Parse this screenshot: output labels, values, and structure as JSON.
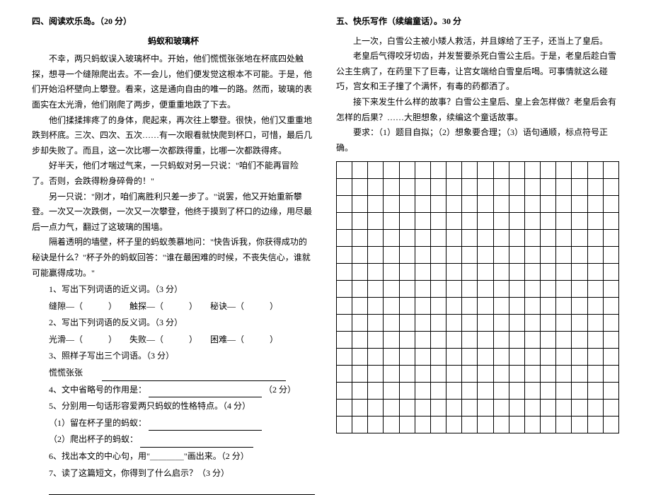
{
  "left": {
    "section_title": "四、阅读欢乐岛。（20 分）",
    "story_title": "蚂蚁和玻璃杯",
    "paragraphs": [
      "不幸，两只蚂蚁误入玻璃杯中。开始，他们慌慌张张地在杯底四处触探，想寻一个缝隙爬出去。不一会儿，他们便发觉这根本不可能。于是，他们开始沿杯壁向上攀登。看来，这是通向自由的唯一的路。然而，玻璃的表面实在太光滑，他们刚爬了两步，便重重地跌了下去。",
      "他们揉揉摔疼了的身体，爬起来，再次往上攀登。很快，他们又重重地跌到杯底。三次、四次、五次……有一次眼看就快爬到杯口，可惜，最后几步却失败了。而且，这一次比哪一次都跌得重，比哪一次都跌得疼。",
      "好半天，他们才喘过气来，一只蚂蚁对另一只说：\"咱们不能再冒险了。否则，会跌得粉身碎骨的！\"",
      "另一只说：\"刚才，咱们离胜利只差一步了。\"说罢，他又开始重新攀登。一次又一次跌倒，一次又一次攀登，他终于摸到了杯口的边缘，用尽最后一点力气，翻过了这玻璃的围墙。",
      "隔着透明的墙壁，杯子里的蚂蚁羡慕地问：\"快告诉我，你获得成功的秘诀是什么？\"杯子外的蚂蚁回答：\"谁在最困难的时候，不丧失信心，谁就可能赢得成功。\""
    ],
    "questions": {
      "q1": "1、写出下列词语的近义词。（3 分）",
      "q1_items": "缝隙—（　　　）　　触探—（　　　）　　秘诀—（　　　）",
      "q2": "2、写出下列词语的反义词。（3 分）",
      "q2_items": "光滑—（　　　）　　失败—（　　　）　　困难—（　　　）",
      "q3": "3、照样子写出三个词语。（3 分）",
      "q3_items": "慌慌张张　　",
      "q4": "4、文中省略号的作用是：",
      "q4_score": "（2 分）",
      "q5": "5、分别用一句话形容爱两只蚂蚁的性格特点。（4 分）",
      "q5_a": "（1）留在杯子里的蚂蚁：",
      "q5_b": "（2）爬出杯子的蚂蚁：",
      "q6": "6、找出本文的中心句，用\"＿＿＿＿\"画出来。（2 分）",
      "q7": "7、读了这篇短文，你得到了什么启示？（3 分）"
    }
  },
  "right": {
    "section_title": "五、快乐写作（续编童话）。30 分",
    "paragraphs": [
      "上一次，白雪公主被小矮人救活，并且嫁给了王子，还当上了皇后。",
      "老皇后气得咬牙切齿，并发誓要杀死白雪公主后。于是，老皇后趁白雪公主生病了，在药里下了巨毒，让宫女端给白雪皇后喝。可事情就这么碰巧，宫女和王子撞了个满怀，有毒的药都洒了。",
      "接下来发生什么样的故事？白雪公主皇后、皇上会怎样做？老皇后会有怎样的后果？……大胆想象，续编这个童话故事。",
      "要求：（1）题目自拟；（2）想象要合理；（3）语句通顺，标点符号正确。"
    ],
    "grid": {
      "rows": 16,
      "cols": 18
    }
  }
}
